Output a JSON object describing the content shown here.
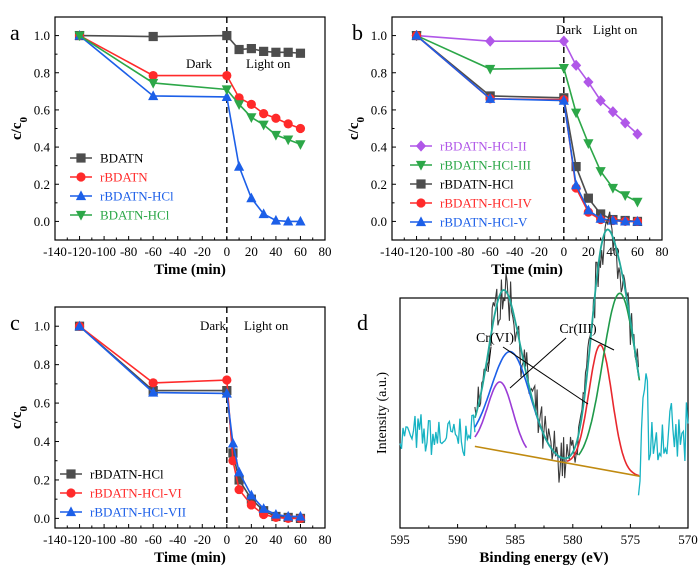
{
  "chart_data": [
    {
      "id": "a",
      "type": "line",
      "panel_label": "a",
      "xlabel": "Time (min)",
      "ylabel": "c/c0",
      "xlim": [
        -140,
        80
      ],
      "ylim": [
        -0.1,
        1.1
      ],
      "xticks": [
        -140,
        -120,
        -100,
        -80,
        -60,
        -40,
        -20,
        0,
        20,
        40,
        60,
        80
      ],
      "yticks": [
        0.0,
        0.2,
        0.4,
        0.6,
        0.8,
        1.0
      ],
      "annotations": {
        "dark": "Dark",
        "light": "Light on"
      },
      "series": [
        {
          "name": "BDATN",
          "color": "#4d4d4d",
          "marker": "square",
          "x": [
            -120,
            -60,
            0,
            10,
            20,
            30,
            40,
            50,
            60
          ],
          "y": [
            1.0,
            0.995,
            1.0,
            0.925,
            0.93,
            0.915,
            0.91,
            0.91,
            0.905
          ]
        },
        {
          "name": "rBDATN",
          "color": "#ff2a2a",
          "marker": "circle",
          "x": [
            -120,
            -60,
            0,
            10,
            20,
            30,
            40,
            50,
            60
          ],
          "y": [
            1.0,
            0.785,
            0.785,
            0.665,
            0.63,
            0.58,
            0.555,
            0.525,
            0.5
          ]
        },
        {
          "name": "rBDATN-HCl",
          "color": "#1c5fe8",
          "marker": "triangle-up",
          "x": [
            -120,
            -60,
            0,
            10,
            20,
            30,
            40,
            50,
            60
          ],
          "y": [
            1.0,
            0.675,
            0.67,
            0.295,
            0.125,
            0.04,
            0.005,
            0.0,
            0.0
          ]
        },
        {
          "name": "BDATN-HCl",
          "color": "#2ca748",
          "marker": "triangle-down",
          "x": [
            -120,
            -60,
            0,
            10,
            20,
            30,
            40,
            50,
            60
          ],
          "y": [
            1.0,
            0.745,
            0.71,
            0.63,
            0.56,
            0.52,
            0.465,
            0.44,
            0.415
          ]
        }
      ]
    },
    {
      "id": "b",
      "type": "line",
      "panel_label": "b",
      "xlabel": "Time (min)",
      "ylabel": "c/c0",
      "xlim": [
        -140,
        80
      ],
      "ylim": [
        -0.1,
        1.1
      ],
      "xticks": [
        -140,
        -120,
        -100,
        -80,
        -60,
        -40,
        -20,
        0,
        20,
        40,
        60,
        80
      ],
      "yticks": [
        0.0,
        0.2,
        0.4,
        0.6,
        0.8,
        1.0
      ],
      "annotations": {
        "dark": "Dark",
        "light": "Light on"
      },
      "series": [
        {
          "name": "rBDATN-HCl-II",
          "color": "#b057e8",
          "marker": "diamond",
          "x": [
            -120,
            -60,
            0,
            10,
            20,
            30,
            40,
            50,
            60
          ],
          "y": [
            1.0,
            0.97,
            0.97,
            0.84,
            0.75,
            0.65,
            0.59,
            0.53,
            0.47
          ]
        },
        {
          "name": "rBDATN-HCl-III",
          "color": "#2ca748",
          "marker": "triangle-down",
          "x": [
            -120,
            -60,
            0,
            10,
            20,
            30,
            40,
            50,
            60
          ],
          "y": [
            1.0,
            0.82,
            0.825,
            0.585,
            0.42,
            0.27,
            0.18,
            0.14,
            0.105
          ]
        },
        {
          "name": "rBDATN-HCl",
          "color": "#4d4d4d",
          "marker": "square",
          "x": [
            -120,
            -60,
            0,
            10,
            20,
            30,
            40,
            50,
            60
          ],
          "y": [
            1.0,
            0.675,
            0.665,
            0.295,
            0.125,
            0.04,
            0.01,
            0.005,
            0.0
          ]
        },
        {
          "name": "rBDATN-HCl-IV",
          "color": "#ff2a2a",
          "marker": "circle",
          "x": [
            -120,
            -60,
            0,
            10,
            20,
            30,
            40,
            50,
            60
          ],
          "y": [
            1.0,
            0.66,
            0.655,
            0.18,
            0.05,
            0.01,
            0.005,
            0.0,
            0.0
          ]
        },
        {
          "name": "rBDATN-HCl-V",
          "color": "#1c5fe8",
          "marker": "triangle-up",
          "x": [
            -120,
            -60,
            0,
            10,
            20,
            30,
            40,
            50,
            60
          ],
          "y": [
            1.0,
            0.66,
            0.65,
            0.195,
            0.06,
            0.015,
            0.005,
            0.0,
            0.0
          ]
        }
      ]
    },
    {
      "id": "c",
      "type": "line",
      "panel_label": "c",
      "xlabel": "Time (min)",
      "ylabel": "c/c0",
      "xlim": [
        -140,
        80
      ],
      "ylim": [
        -0.05,
        1.1
      ],
      "xticks": [
        -140,
        -120,
        -100,
        -80,
        -60,
        -40,
        -20,
        0,
        20,
        40,
        60,
        80
      ],
      "yticks": [
        0.0,
        0.2,
        0.4,
        0.6,
        0.8,
        1.0
      ],
      "annotations": {
        "dark": "Dark",
        "light": "Light on"
      },
      "series": [
        {
          "name": "rBDATN-HCl",
          "color": "#4d4d4d",
          "marker": "square",
          "x": [
            -120,
            -60,
            0,
            5,
            10,
            20,
            30,
            40,
            50,
            60
          ],
          "y": [
            1.0,
            0.665,
            0.665,
            0.34,
            0.2,
            0.1,
            0.04,
            0.01,
            0.005,
            0.0
          ]
        },
        {
          "name": "rBDATN-HCl-VI",
          "color": "#ff2a2a",
          "marker": "circle",
          "x": [
            -120,
            -60,
            0,
            5,
            10,
            20,
            30,
            40,
            50,
            60
          ],
          "y": [
            1.0,
            0.705,
            0.72,
            0.3,
            0.15,
            0.07,
            0.02,
            0.005,
            0.0,
            0.0
          ]
        },
        {
          "name": "rBDATN-HCl-VII",
          "color": "#1c5fe8",
          "marker": "triangle-up",
          "x": [
            -120,
            -60,
            0,
            5,
            10,
            20,
            30,
            40,
            50,
            60
          ],
          "y": [
            1.0,
            0.655,
            0.65,
            0.39,
            0.24,
            0.12,
            0.05,
            0.02,
            0.01,
            0.01
          ]
        }
      ]
    },
    {
      "id": "d",
      "type": "line",
      "panel_label": "d",
      "xlabel": "Binding energy (eV)",
      "ylabel": "Intensity (a.u.)",
      "xlim": [
        595,
        570
      ],
      "xticks": [
        595,
        590,
        585,
        580,
        575,
        570
      ],
      "peak_labels": [
        "Cr(VI)",
        "Cr(III)"
      ],
      "series": [
        {
          "name": "raw",
          "color": "#3a3a3a",
          "x": [],
          "y": []
        },
        {
          "name": "envelope",
          "color": "#22a89a",
          "x": [],
          "y": []
        },
        {
          "name": "Cr(VI) 2p1/2 peak",
          "color": "#9b3cd6",
          "x": [],
          "y": []
        },
        {
          "name": "Cr(III) 2p1/2 peak",
          "color": "#1c5fe8",
          "x": [],
          "y": []
        },
        {
          "name": "Cr(VI) 2p3/2 peak",
          "color": "#e8282e",
          "x": [],
          "y": []
        },
        {
          "name": "Cr(III) 2p3/2 peak",
          "color": "#1f9a4a",
          "x": [],
          "y": []
        },
        {
          "name": "background",
          "color": "#c08a10",
          "x": [],
          "y": []
        },
        {
          "name": "background-ext",
          "color": "#1ab8c8",
          "x": [],
          "y": []
        }
      ]
    }
  ]
}
